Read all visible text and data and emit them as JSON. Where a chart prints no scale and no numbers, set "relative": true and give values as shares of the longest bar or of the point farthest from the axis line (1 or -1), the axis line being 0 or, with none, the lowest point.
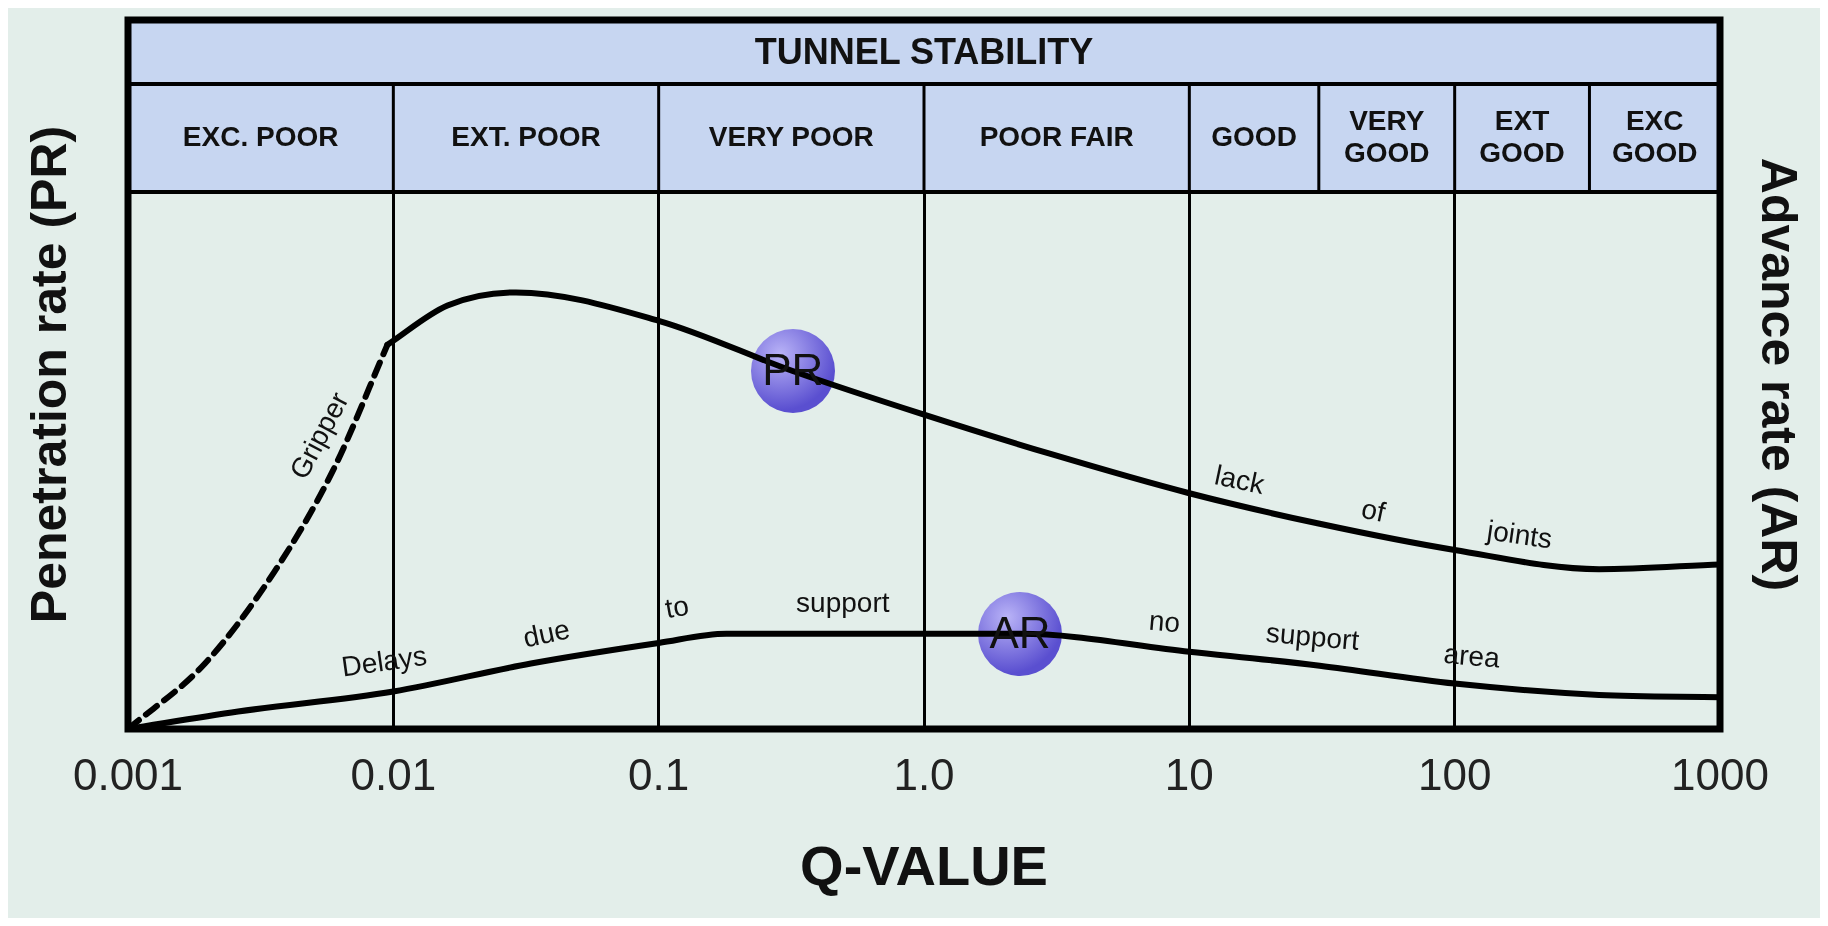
{
  "chart_data": {
    "type": "line",
    "title": "TUNNEL STABILITY",
    "xlabel": "Q-VALUE",
    "ylabel": "Penetration rate (PR)",
    "y2label": "Advance rate (AR)",
    "relative": true,
    "log": "x",
    "grid": "x",
    "xlim": [
      0.001,
      1000
    ],
    "xticks": [
      0.001,
      0.01,
      0.1,
      {
        "value": 1,
        "label": "1.0"
      },
      10,
      100,
      1000
    ],
    "series": [
      {
        "color": "#000000",
        "line_style": "dashed",
        "x": [
          0.001,
          0.00195,
          0.00356,
          0.0059,
          0.0095
        ],
        "values": [
          0,
          0.15,
          0.36,
          0.59,
          0.88
        ]
      },
      {
        "color": "#000000",
        "line_style": "solid",
        "x": [
          0.0095,
          0.016,
          0.029,
          0.1,
          0.32,
          1,
          3,
          10,
          31,
          100,
          350,
          1000
        ],
        "values": [
          0.88,
          0.97,
          1.0,
          0.935,
          0.82,
          0.72,
          0.63,
          0.54,
          0.47,
          0.41,
          0.366,
          0.377
        ]
      },
      {
        "color": "#000000",
        "line_style": "solid",
        "x": [
          0.001,
          0.0026,
          0.01,
          0.033,
          0.1,
          0.18,
          1,
          2.3,
          10,
          31,
          100,
          350,
          1000
        ],
        "values": [
          0,
          0.04,
          0.086,
          0.15,
          0.197,
          0.218,
          0.218,
          0.218,
          0.177,
          0.145,
          0.104,
          0.078,
          0.073
        ]
      }
    ],
    "annotations": [
      "EXC. POOR",
      "EXT. POOR",
      "VERY POOR",
      "POOR FAIR",
      "GOOD",
      "VERY GOOD",
      "EXT GOOD",
      "EXC GOOD",
      {
        "text": "PR",
        "x": 0.32,
        "y": 0.82
      },
      {
        "text": "AR",
        "x": 2.3,
        "y": 0.218
      },
      "Gripper",
      "Delays",
      "due",
      "to",
      "support",
      "no",
      "support",
      "area",
      "lack",
      "of",
      "joints"
    ]
  }
}
